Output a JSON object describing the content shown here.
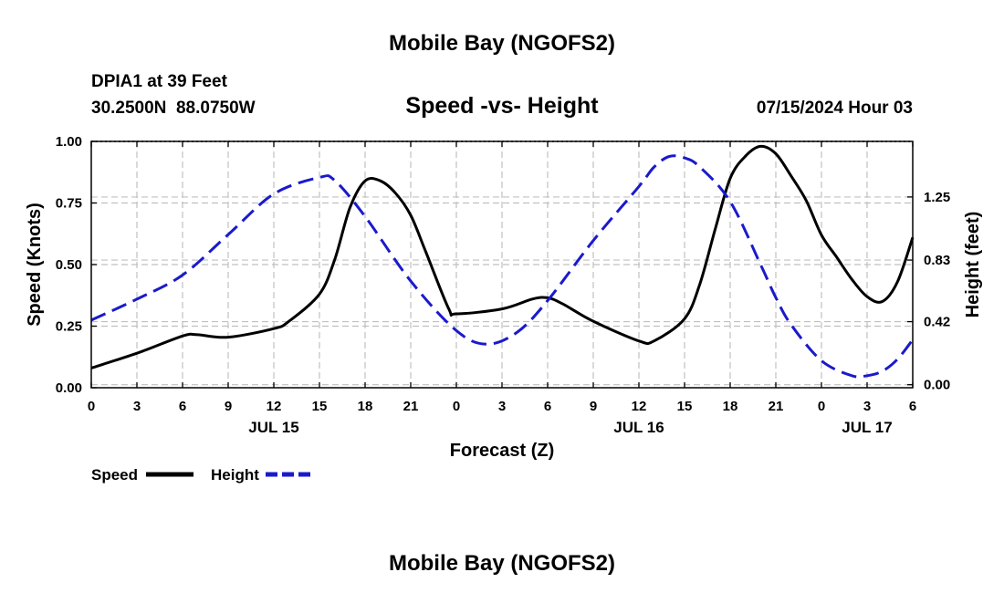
{
  "header": {
    "title": "Mobile Bay (NGOFS2)",
    "station": "DPIA1 at 39 Feet",
    "coords": "30.2500N  88.0750W",
    "plot_title": "Speed -vs- Height",
    "datetime": "07/15/2024 Hour 03",
    "footer_title": "Mobile Bay (NGOFS2)"
  },
  "legend": {
    "speed_label": "Speed",
    "height_label": "Height"
  },
  "colors": {
    "speed": "#000000",
    "height": "#1a1acc",
    "grid": "#c0c0c0"
  },
  "chart_data": {
    "type": "line",
    "title": "Speed -vs- Height",
    "xlabel": "Forecast (Z)",
    "ylabel_left": "Speed (Knots)",
    "ylabel_right": "Height (feet)",
    "x_range_hours": [
      0,
      54
    ],
    "x_ticks": [
      {
        "h": 0,
        "label": "0"
      },
      {
        "h": 3,
        "label": "3"
      },
      {
        "h": 6,
        "label": "6"
      },
      {
        "h": 9,
        "label": "9"
      },
      {
        "h": 12,
        "label": "12"
      },
      {
        "h": 15,
        "label": "15"
      },
      {
        "h": 18,
        "label": "18"
      },
      {
        "h": 21,
        "label": "21"
      },
      {
        "h": 24,
        "label": "0"
      },
      {
        "h": 27,
        "label": "3"
      },
      {
        "h": 30,
        "label": "6"
      },
      {
        "h": 33,
        "label": "9"
      },
      {
        "h": 36,
        "label": "12"
      },
      {
        "h": 39,
        "label": "15"
      },
      {
        "h": 42,
        "label": "18"
      },
      {
        "h": 45,
        "label": "21"
      },
      {
        "h": 48,
        "label": "0"
      },
      {
        "h": 51,
        "label": "3"
      },
      {
        "h": 54,
        "label": "6"
      }
    ],
    "day_labels": [
      {
        "h": 12,
        "label": "JUL 15"
      },
      {
        "h": 36,
        "label": "JUL 16"
      },
      {
        "h": 51,
        "label": "JUL 17"
      }
    ],
    "y_left": {
      "range": [
        0,
        1
      ],
      "ticks": [
        0,
        0.25,
        0.5,
        0.75,
        1
      ],
      "tick_labels": [
        "0.00",
        "0.25",
        "0.50",
        "0.75",
        "1.00"
      ]
    },
    "y_right": {
      "range": [
        -0.02,
        1.62
      ],
      "ticks": [
        0,
        0.42,
        0.83,
        1.25
      ],
      "tick_labels": [
        "0.00",
        "0.42",
        "0.83",
        "1.25"
      ]
    },
    "grid": true,
    "series": [
      {
        "name": "Speed",
        "axis": "left",
        "style": "solid",
        "x": [
          0,
          3,
          6,
          7,
          9,
          12,
          13,
          15,
          16,
          17,
          18,
          19,
          20,
          21,
          22,
          23.5,
          24,
          27,
          29,
          30,
          31,
          33,
          36,
          37,
          39,
          40,
          41,
          42,
          43,
          44,
          45,
          46,
          47,
          48,
          49,
          50,
          51,
          52,
          53,
          54
        ],
        "values": [
          0.08,
          0.14,
          0.21,
          0.215,
          0.205,
          0.24,
          0.27,
          0.38,
          0.52,
          0.73,
          0.84,
          0.84,
          0.79,
          0.7,
          0.55,
          0.32,
          0.3,
          0.32,
          0.36,
          0.365,
          0.34,
          0.27,
          0.19,
          0.19,
          0.28,
          0.42,
          0.64,
          0.85,
          0.94,
          0.98,
          0.95,
          0.86,
          0.76,
          0.62,
          0.53,
          0.44,
          0.37,
          0.35,
          0.43,
          0.61
        ]
      },
      {
        "name": "Height",
        "axis": "right",
        "style": "dashed",
        "x": [
          0,
          3,
          6,
          9,
          12,
          15,
          16,
          18,
          21,
          24,
          26,
          28,
          30,
          33,
          36,
          37,
          38,
          39,
          40,
          42,
          44,
          45,
          46,
          48,
          50,
          51,
          52,
          53,
          54
        ],
        "values": [
          0.43,
          0.57,
          0.73,
          1.0,
          1.27,
          1.38,
          1.36,
          1.12,
          0.69,
          0.36,
          0.27,
          0.35,
          0.56,
          0.96,
          1.32,
          1.45,
          1.52,
          1.51,
          1.45,
          1.22,
          0.8,
          0.58,
          0.4,
          0.16,
          0.06,
          0.06,
          0.09,
          0.17,
          0.3
        ]
      }
    ]
  }
}
